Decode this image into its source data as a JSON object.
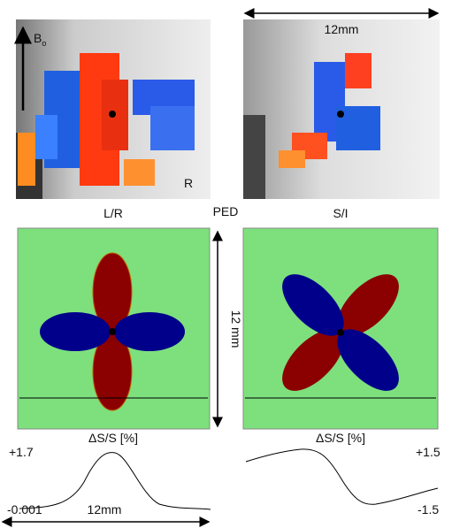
{
  "top_left": {
    "axis_label": "B",
    "axis_label_sub": "o",
    "corner_label": "R"
  },
  "scale_top": "12mm",
  "labels": {
    "left": "L/R",
    "middle": "PED",
    "right": "S/I"
  },
  "scale_vertical": "12 mm",
  "profile_left": {
    "title": "ΔS/S [%]",
    "max": "+1.7",
    "min": "-0.001",
    "scale": "12mm"
  },
  "profile_right": {
    "title": "ΔS/S [%]",
    "max": "+1.5",
    "min": "-1.5"
  }
}
